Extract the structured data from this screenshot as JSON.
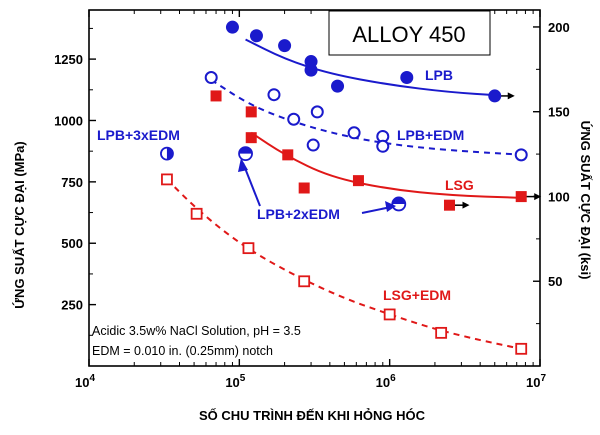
{
  "chart_data": {
    "type": "scatter",
    "title": "ALLOY 450",
    "xlabel": "SỐ CHU TRÌNH ĐẾN KHI HỎNG HÓC",
    "ylabel_left": "ỨNG SUẤT CỰC ĐẠI (MPa)",
    "ylabel_right": "ỨNG SUẤT CỰC ĐẠI (ksi)",
    "x_scale": "log",
    "xlim": [
      10000,
      10000000
    ],
    "ylim_left": [
      0,
      1450
    ],
    "ylim_right_ksi": [
      0,
      210
    ],
    "x_ticks": [
      {
        "value": 10000,
        "base": "10",
        "exp": "4"
      },
      {
        "value": 100000,
        "base": "10",
        "exp": "5"
      },
      {
        "value": 1000000,
        "base": "10",
        "exp": "6"
      },
      {
        "value": 10000000,
        "base": "10",
        "exp": "7"
      }
    ],
    "y_ticks_left": [
      250,
      500,
      750,
      1000,
      1250
    ],
    "y_ticks_left_labels": [
      "250",
      "500",
      "750",
      "1000",
      "1250"
    ],
    "y_ticks_right": [
      50,
      100,
      150,
      200
    ],
    "y_ticks_right_labels": [
      "50",
      "100",
      "150",
      "200"
    ],
    "grid": false,
    "series": [
      {
        "name": "LPB",
        "color": "#1a1acc",
        "marker": "filled-circle",
        "points": [
          [
            90000,
            1380
          ],
          [
            130000,
            1345
          ],
          [
            200000,
            1305
          ],
          [
            300000,
            1240
          ],
          [
            300000,
            1205
          ],
          [
            450000,
            1140
          ],
          [
            1300000,
            1175
          ],
          [
            5000000,
            1100
          ]
        ],
        "fit": {
          "style": "solid",
          "xs": [
            110000,
            5500000
          ],
          "curve": [
            [
              110000,
              1330
            ],
            [
              200000,
              1250
            ],
            [
              400000,
              1190
            ],
            [
              1000000,
              1145
            ],
            [
              2500000,
              1115
            ],
            [
              5500000,
              1102
            ]
          ]
        }
      },
      {
        "name": "LPB+EDM",
        "color": "#1a1acc",
        "marker": "open-circle",
        "points": [
          [
            65000,
            1175
          ],
          [
            170000,
            1105
          ],
          [
            230000,
            1005
          ],
          [
            330000,
            1035
          ],
          [
            310000,
            900
          ],
          [
            580000,
            950
          ],
          [
            900000,
            935
          ],
          [
            900000,
            895
          ],
          [
            7500000,
            860
          ]
        ],
        "fit": {
          "style": "dashed",
          "curve": [
            [
              65000,
              1165
            ],
            [
              120000,
              1060
            ],
            [
              250000,
              985
            ],
            [
              600000,
              925
            ],
            [
              1500000,
              890
            ],
            [
              4000000,
              870
            ],
            [
              8000000,
              860
            ]
          ]
        }
      },
      {
        "name": "LSG",
        "color": "#e01818",
        "marker": "filled-square",
        "points": [
          [
            70000,
            1100
          ],
          [
            120000,
            1035
          ],
          [
            120000,
            930
          ],
          [
            210000,
            860
          ],
          [
            270000,
            725
          ],
          [
            620000,
            755
          ],
          [
            2500000,
            655
          ],
          [
            7500000,
            690
          ]
        ],
        "fit": {
          "style": "solid",
          "curve": [
            [
              120000,
              950
            ],
            [
              200000,
              860
            ],
            [
              400000,
              770
            ],
            [
              1000000,
              720
            ],
            [
              2500000,
              695
            ],
            [
              7500000,
              685
            ]
          ]
        }
      },
      {
        "name": "LSG+EDM",
        "color": "#e01818",
        "marker": "open-square",
        "points": [
          [
            33000,
            760
          ],
          [
            52000,
            620
          ],
          [
            115000,
            480
          ],
          [
            270000,
            345
          ],
          [
            1000000,
            210
          ],
          [
            2200000,
            135
          ],
          [
            7500000,
            70
          ]
        ],
        "fit": {
          "style": "dashed",
          "curve": [
            [
              33000,
              760
            ],
            [
              50000,
              650
            ],
            [
              80000,
              545
            ],
            [
              130000,
              455
            ],
            [
              250000,
              360
            ],
            [
              500000,
              275
            ],
            [
              1000000,
              210
            ],
            [
              2000000,
              150
            ],
            [
              4000000,
              105
            ],
            [
              7500000,
              70
            ]
          ]
        }
      },
      {
        "name": "LPB+3xEDM",
        "color": "#1a1acc",
        "marker": "half-circle",
        "points": [
          [
            33000,
            865
          ]
        ]
      },
      {
        "name": "LPB+2xEDM",
        "color": "#1a1acc",
        "marker": "split-circle",
        "points": [
          [
            110000,
            865
          ],
          [
            1150000,
            660
          ]
        ]
      }
    ],
    "annotations": {
      "lpb": "LPB",
      "lpb_edm": "LPB+EDM",
      "lpb_3xedm": "LPB+3xEDM",
      "lpb_2xedm": "LPB+2xEDM",
      "lsg": "LSG",
      "lsg_edm": "LSG+EDM",
      "note_line1": "Acidic 3.5w% NaCl Solution, pH = 3.5",
      "note_line2": "EDM = 0.010 in. (0.25mm) notch"
    }
  }
}
